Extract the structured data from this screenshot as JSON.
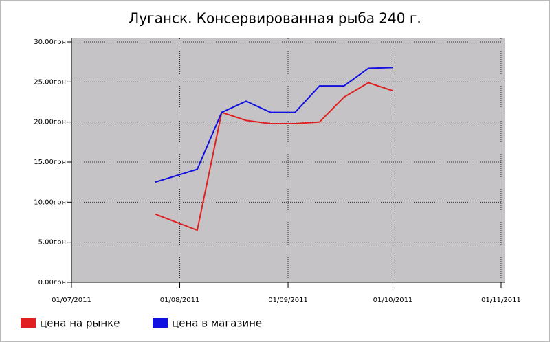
{
  "chart_data": {
    "type": "line",
    "title": "Луганск. Консервированная рыба  240 г.",
    "x": [
      "25/07/2011",
      "06/08/2011",
      "13/08/2011",
      "20/08/2011",
      "27/08/2011",
      "03/09/2011",
      "10/09/2011",
      "17/09/2011",
      "24/09/2011",
      "01/10/2011"
    ],
    "series": [
      {
        "name": "цена на рынке",
        "color": "#e02020",
        "values": [
          8.5,
          6.5,
          21.2,
          20.2,
          19.8,
          19.8,
          20.0,
          23.1,
          24.9,
          23.9
        ]
      },
      {
        "name": "цена в магазине",
        "color": "#1010e0",
        "values": [
          12.5,
          14.1,
          21.2,
          22.6,
          21.2,
          21.2,
          24.5,
          24.5,
          26.7,
          26.8
        ]
      }
    ],
    "xlim": [
      "01/07/2011",
      "01/11/2011"
    ],
    "xticks": [
      "01/07/2011",
      "01/08/2011",
      "01/09/2011",
      "01/10/2011",
      "01/11/2011"
    ],
    "ylim": [
      0,
      30
    ],
    "yticks": [
      {
        "value": 0,
        "label": "0.00грн"
      },
      {
        "value": 5,
        "label": "5.00грн"
      },
      {
        "value": 10,
        "label": "10.00грн"
      },
      {
        "value": 15,
        "label": "15.00грн"
      },
      {
        "value": 20,
        "label": "20.00грн"
      },
      {
        "value": 25,
        "label": "25.00грн"
      },
      {
        "value": 30,
        "label": "30.00грн"
      }
    ],
    "grid": true
  }
}
